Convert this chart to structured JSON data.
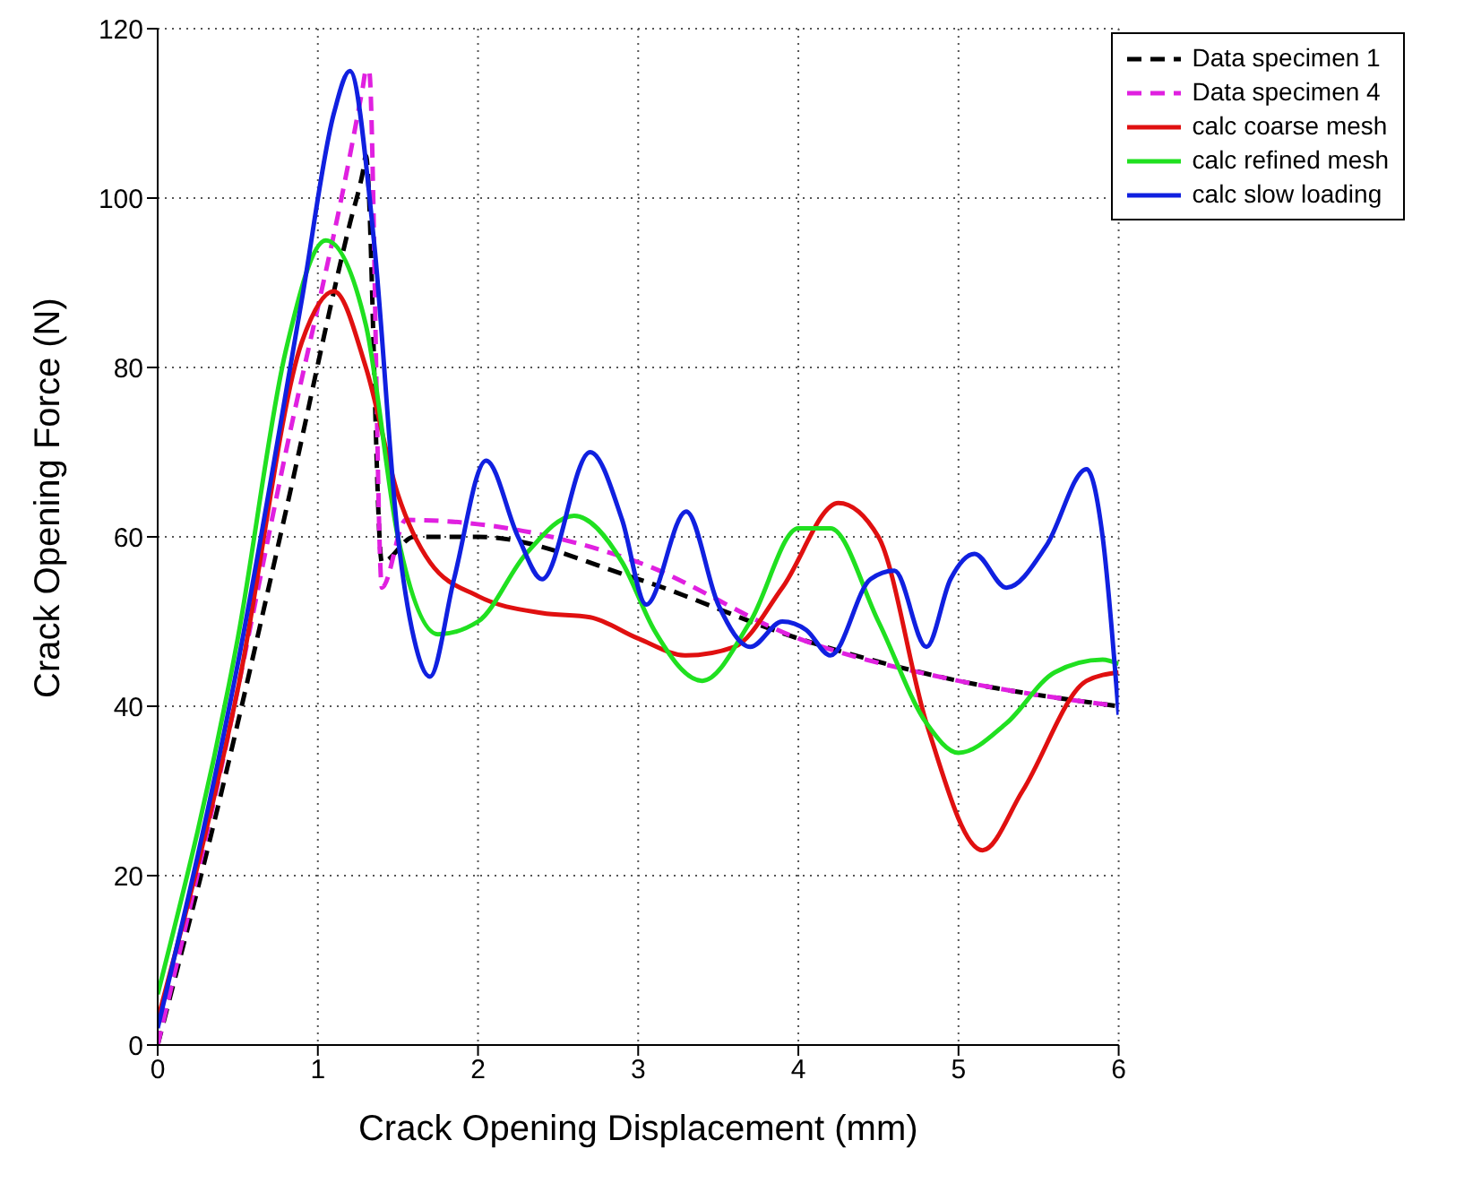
{
  "chart_data": {
    "type": "line",
    "xlabel": "Crack Opening Displacement (mm)",
    "ylabel": "Crack Opening Force (N)",
    "xlim": [
      0,
      6
    ],
    "xticks": [
      0,
      1,
      2,
      3,
      4,
      5,
      6
    ],
    "ylim": [
      0,
      120
    ],
    "yticks": [
      0,
      20,
      40,
      60,
      80,
      100,
      120
    ],
    "grid": true,
    "legend": "top right",
    "marker": "none",
    "series": [
      {
        "name": "Data specimen 1",
        "color": "#000000",
        "line_style": "dashed",
        "x": [
          0,
          0.4,
          0.8,
          1.2,
          1.28,
          1.3,
          1.4,
          1.6,
          2,
          3,
          4,
          5,
          6
        ],
        "values": [
          0,
          30,
          63,
          97,
          103,
          105,
          57,
          60,
          60,
          55,
          48,
          43,
          40
        ]
      },
      {
        "name": "Data specimen 4",
        "color": "#e020e0",
        "line_style": "dashed",
        "x": [
          0,
          0.4,
          0.8,
          1.2,
          1.28,
          1.3,
          1.32,
          1.4,
          1.55,
          3,
          4,
          5,
          6
        ],
        "values": [
          0,
          33,
          70,
          105,
          113,
          115,
          115,
          54,
          62,
          57,
          48,
          43,
          40
        ]
      },
      {
        "name": "calc coarse mesh",
        "color": "#e01010",
        "line_style": "solid",
        "x": [
          0,
          0.5,
          0.9,
          1.1,
          1.3,
          1.5,
          1.7,
          2,
          2.4,
          2.7,
          3,
          3.3,
          3.6,
          3.9,
          4.25,
          4.5,
          4.8,
          5.15,
          5.4,
          5.8,
          6
        ],
        "values": [
          3,
          42,
          83,
          89,
          80,
          65,
          57,
          53,
          51,
          50.5,
          48,
          46,
          47,
          54,
          64,
          60,
          38,
          23,
          30,
          43,
          44
        ]
      },
      {
        "name": "calc refined mesh",
        "color": "#20e020",
        "line_style": "solid",
        "x": [
          0,
          0.5,
          0.8,
          1.05,
          1.3,
          1.5,
          1.75,
          2,
          2.3,
          2.6,
          2.9,
          3.1,
          3.4,
          3.7,
          4,
          4.2,
          4.5,
          4.8,
          5,
          5.3,
          5.6,
          5.9,
          6
        ],
        "values": [
          6,
          48,
          82,
          95,
          85,
          60,
          48.5,
          50,
          58,
          62.5,
          57,
          49,
          43,
          50,
          61,
          61,
          50,
          38,
          34.5,
          38,
          44,
          45.5,
          45
        ]
      },
      {
        "name": "calc slow loading",
        "color": "#1020e0",
        "line_style": "solid",
        "x": [
          0,
          0.5,
          0.9,
          1.1,
          1.2,
          1.35,
          1.5,
          1.6,
          1.7,
          1.85,
          2.05,
          2.25,
          2.4,
          2.7,
          2.9,
          3.05,
          3.3,
          3.5,
          3.7,
          3.9,
          4.05,
          4.2,
          4.45,
          4.6,
          4.8,
          4.95,
          5.1,
          5.3,
          5.55,
          5.8,
          5.9,
          6
        ],
        "values": [
          2,
          45,
          88,
          110,
          115,
          95,
          60,
          48,
          43.5,
          55,
          69,
          60,
          55,
          70,
          62,
          52,
          63,
          52,
          47,
          50,
          49,
          46,
          55,
          56,
          47,
          55,
          58,
          54,
          59,
          68,
          60,
          39
        ]
      }
    ]
  }
}
